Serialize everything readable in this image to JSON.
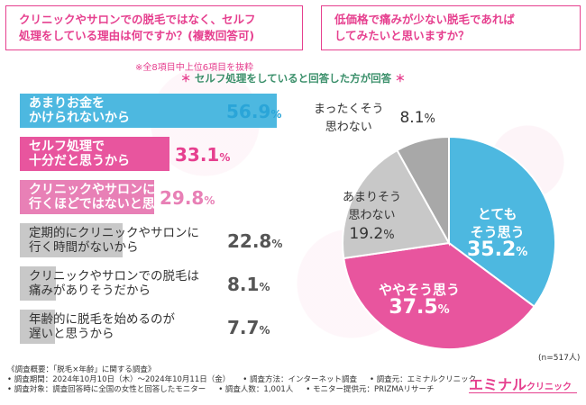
{
  "questions": {
    "q1_line1": "クリニックやサロンでの脱毛ではなく、セルフ",
    "q1_line2": "処理をしている理由は何ですか？",
    "q1_suffix": "(複数回答可)",
    "q2_line1": "低価格で痛みが少ない脱毛であれば",
    "q2_line2": "してみたいと思いますか？"
  },
  "note": "※全8項目中上位6項目を抜粋",
  "subtitle_star_left": "＊",
  "subtitle": "セルフ処理をしていると回答した方が回答",
  "subtitle_star_right": "＊",
  "chart_data": [
    {
      "type": "bar",
      "orientation": "horizontal",
      "categories": [
        "あまりお金をかけられないから",
        "セルフ処理で十分だと思うから",
        "クリニックやサロンに行くほどではないと思うから",
        "定期的にクリニックやサロンに行く時間がないから",
        "クリニックやサロンでの脱毛は痛みがありそうだから",
        "年齢的に脱毛を始めるのが遅いと思うから"
      ],
      "label_lines": [
        [
          "あまりお金を",
          "かけられないから"
        ],
        [
          "セルフ処理で",
          "十分だと思うから"
        ],
        [
          "クリニックやサロンに",
          "行くほどではないと思うから"
        ],
        [
          "定期的にクリニックやサロンに",
          "行く時間がないから"
        ],
        [
          "クリニックやサロンでの脱毛は",
          "痛みがありそうだから"
        ],
        [
          "年齢的に脱毛を始めるのが",
          "遅いと思うから"
        ]
      ],
      "values": [
        56.9,
        33.1,
        29.8,
        22.8,
        8.1,
        7.7
      ],
      "value_labels": [
        "56.9",
        "33.1",
        "29.8",
        "22.8",
        "8.1",
        "7.7"
      ],
      "unit": "%",
      "colors": [
        "#4db8e0",
        "#e8559e",
        "#e880b6",
        "#c8c8c8",
        "#c8c8c8",
        "#c8c8c8"
      ],
      "value_colors": [
        "#2aa5d8",
        "#e6408f",
        "#e880b6",
        "#555555",
        "#555555",
        "#555555"
      ],
      "label_dark": [
        false,
        false,
        false,
        true,
        true,
        true
      ]
    },
    {
      "type": "pie",
      "categories": [
        "とてもそう思う",
        "ややそう思う",
        "あまりそう思わない",
        "まったくそう思わない"
      ],
      "label_lines": [
        [
          "とても",
          "そう思う"
        ],
        [
          "ややそう思う"
        ],
        [
          "あまりそう",
          "思わない"
        ],
        [
          "まったくそう",
          "思わない"
        ]
      ],
      "values": [
        35.2,
        37.5,
        19.2,
        8.1
      ],
      "value_labels": [
        "35.2",
        "37.5",
        "19.2",
        "8.1"
      ],
      "unit": "%",
      "colors": [
        "#4db8e0",
        "#e8559e",
        "#c8c8c8",
        "#a8a8a8"
      ],
      "n": "(n=517人)"
    }
  ],
  "footer": {
    "line1": "《調査概要：「脱毛×年齢」に関する調査》",
    "period": "• 調査期間：2024年10月10日（木）〜2024年10月11日（金）",
    "method": "• 調査方法：インターネット調査",
    "source": "• 調査元：エミナルクリニック",
    "target": "• 調査対象：調査回答時に全国の女性と回答したモニター",
    "count": "• 調査人数：1,001人",
    "provider": "• モニター提供元：PRIZMAリサーチ"
  },
  "brand": {
    "main": "エミナル",
    "sub": "クリニック"
  }
}
